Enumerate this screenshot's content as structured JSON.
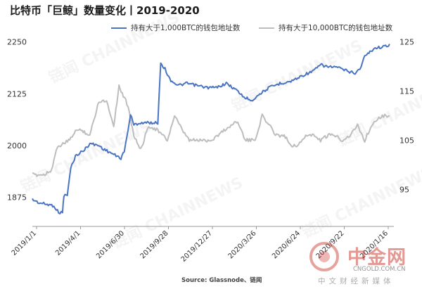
{
  "header": {
    "title": "比特币「巨鲸」数量变化丨2019-2020"
  },
  "legend": {
    "series1": "持有大于1,000BTC的钱包地址数",
    "series2": "持有大于10,000BTC的钱包地址数"
  },
  "footer": {
    "source": "Source: Glassnode、链闻"
  },
  "watermark": {
    "text": "链闻 CHAINNEWS",
    "logo_text": "中金网",
    "logo_url": "CNGOLD.COM.CN",
    "logo_cn": "中文财经新媒体"
  },
  "colors": {
    "series1": "#4a74c2",
    "series2": "#bdbdbd"
  },
  "chart_data": {
    "type": "line",
    "xlabel": "",
    "ylabel_left": "",
    "ylabel_right": "",
    "y_left_lim": [
      1805,
      2280
    ],
    "y_left_ticks": [
      1875,
      2000,
      2125,
      2250
    ],
    "y_right_lim": [
      87.5,
      127.5
    ],
    "y_right_ticks": [
      95,
      105,
      115,
      125
    ],
    "x_range": [
      "2019-01-01",
      "2021-01-25"
    ],
    "x_ticks": [
      "2019/1/1",
      "2019/4/1",
      "2019/6/30",
      "2019/9/28",
      "2019/12/27",
      "2020/3/26",
      "2020/6/24",
      "2020/9/22",
      "2020/1/16"
    ],
    "grid": false,
    "legend_position": "top",
    "series": [
      {
        "name": "持有大于1,000BTC的钱包地址数",
        "axis": "left",
        "points": [
          [
            "2019-01-01",
            1870
          ],
          [
            "2019-01-15",
            1862
          ],
          [
            "2019-02-01",
            1858
          ],
          [
            "2019-02-15",
            1855
          ],
          [
            "2019-02-25",
            1838
          ],
          [
            "2019-03-05",
            1840
          ],
          [
            "2019-03-08",
            1880
          ],
          [
            "2019-03-15",
            1880
          ],
          [
            "2019-03-22",
            1945
          ],
          [
            "2019-04-01",
            1975
          ],
          [
            "2019-04-10",
            1982
          ],
          [
            "2019-04-20",
            1990
          ],
          [
            "2019-05-01",
            2005
          ],
          [
            "2019-05-20",
            2000
          ],
          [
            "2019-06-01",
            1990
          ],
          [
            "2019-06-15",
            1982
          ],
          [
            "2019-06-25",
            1975
          ],
          [
            "2019-07-05",
            1970
          ],
          [
            "2019-07-12",
            1985
          ],
          [
            "2019-07-20",
            2040
          ],
          [
            "2019-07-25",
            2075
          ],
          [
            "2019-08-01",
            2050
          ],
          [
            "2019-08-15",
            2055
          ],
          [
            "2019-09-01",
            2055
          ],
          [
            "2019-09-20",
            2055
          ],
          [
            "2019-09-26",
            2200
          ],
          [
            "2019-10-05",
            2185
          ],
          [
            "2019-10-15",
            2160
          ],
          [
            "2019-11-01",
            2145
          ],
          [
            "2019-11-20",
            2150
          ],
          [
            "2019-12-10",
            2145
          ],
          [
            "2020-01-01",
            2140
          ],
          [
            "2020-01-20",
            2140
          ],
          [
            "2020-02-10",
            2150
          ],
          [
            "2020-03-01",
            2135
          ],
          [
            "2020-03-20",
            2115
          ],
          [
            "2020-04-05",
            2110
          ],
          [
            "2020-04-20",
            2125
          ],
          [
            "2020-05-10",
            2140
          ],
          [
            "2020-06-01",
            2150
          ],
          [
            "2020-06-24",
            2155
          ],
          [
            "2020-07-20",
            2170
          ],
          [
            "2020-08-10",
            2180
          ],
          [
            "2020-08-25",
            2195
          ],
          [
            "2020-09-10",
            2190
          ],
          [
            "2020-09-25",
            2190
          ],
          [
            "2020-10-20",
            2180
          ],
          [
            "2020-11-05",
            2175
          ],
          [
            "2020-11-15",
            2185
          ],
          [
            "2020-11-25",
            2215
          ],
          [
            "2020-12-15",
            2235
          ],
          [
            "2021-01-10",
            2240
          ],
          [
            "2021-01-16",
            2245
          ]
        ]
      },
      {
        "name": "持有大于10,000BTC的钱包地址数",
        "axis": "right",
        "points": [
          [
            "2019-01-01",
            98
          ],
          [
            "2019-01-25",
            98
          ],
          [
            "2019-02-10",
            99
          ],
          [
            "2019-02-20",
            103
          ],
          [
            "2019-03-01",
            104
          ],
          [
            "2019-03-20",
            105
          ],
          [
            "2019-04-01",
            107
          ],
          [
            "2019-04-15",
            107
          ],
          [
            "2019-05-01",
            106
          ],
          [
            "2019-05-20",
            113
          ],
          [
            "2019-06-05",
            113
          ],
          [
            "2019-06-20",
            108
          ],
          [
            "2019-07-01",
            116
          ],
          [
            "2019-07-10",
            114
          ],
          [
            "2019-07-20",
            112
          ],
          [
            "2019-08-01",
            106
          ],
          [
            "2019-08-15",
            103
          ],
          [
            "2019-09-01",
            108
          ],
          [
            "2019-09-20",
            107
          ],
          [
            "2019-10-10",
            105
          ],
          [
            "2019-10-25",
            110
          ],
          [
            "2019-11-10",
            107
          ],
          [
            "2019-11-25",
            105
          ],
          [
            "2019-12-15",
            105
          ],
          [
            "2020-01-10",
            105
          ],
          [
            "2020-02-05",
            107
          ],
          [
            "2020-02-20",
            108
          ],
          [
            "2020-03-05",
            109
          ],
          [
            "2020-03-20",
            105
          ],
          [
            "2020-04-10",
            105
          ],
          [
            "2020-04-25",
            110
          ],
          [
            "2020-05-10",
            108
          ],
          [
            "2020-05-25",
            106
          ],
          [
            "2020-06-10",
            106
          ],
          [
            "2020-06-24",
            104
          ],
          [
            "2020-07-10",
            104
          ],
          [
            "2020-07-25",
            106
          ],
          [
            "2020-08-10",
            106
          ],
          [
            "2020-08-25",
            105
          ],
          [
            "2020-09-10",
            106
          ],
          [
            "2020-09-25",
            106
          ],
          [
            "2020-10-10",
            105
          ],
          [
            "2020-10-25",
            106
          ],
          [
            "2020-11-10",
            108
          ],
          [
            "2020-11-25",
            105
          ],
          [
            "2020-12-05",
            107
          ],
          [
            "2020-12-15",
            109
          ],
          [
            "2021-01-01",
            110
          ],
          [
            "2021-01-16",
            110
          ]
        ]
      }
    ]
  }
}
